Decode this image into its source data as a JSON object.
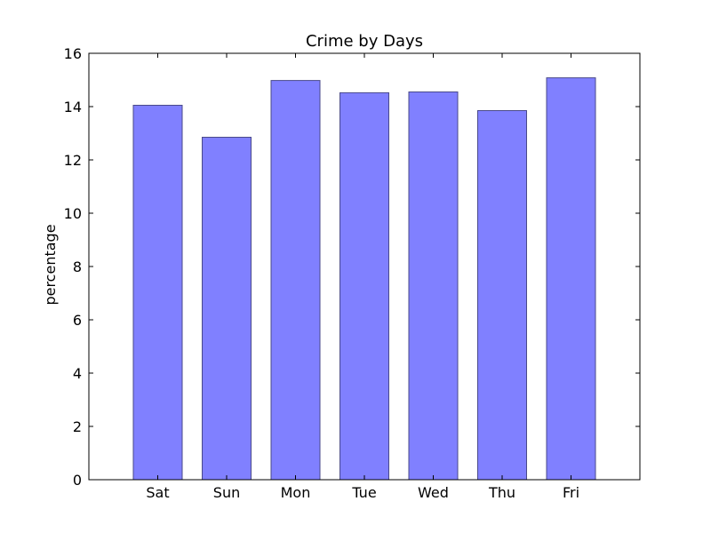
{
  "chart_data": {
    "type": "bar",
    "title": "Crime by Days",
    "xlabel": "",
    "ylabel": "percentage",
    "categories": [
      "Sat",
      "Sun",
      "Mon",
      "Tue",
      "Wed",
      "Thu",
      "Fri"
    ],
    "values": [
      14.05,
      12.85,
      14.98,
      14.52,
      14.55,
      13.85,
      15.08
    ],
    "ylim": [
      0,
      16
    ],
    "yticks": [
      "0",
      "2",
      "4",
      "6",
      "8",
      "10",
      "12",
      "14",
      "16"
    ],
    "grid": false,
    "colors": {
      "bar_fill": "#8080ff",
      "bar_edge": "#4a4a8a",
      "axis": "#000000"
    }
  }
}
